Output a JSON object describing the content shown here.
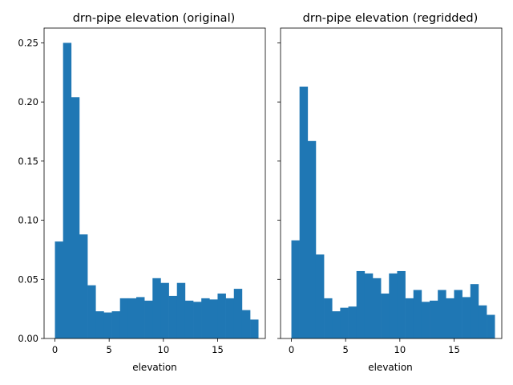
{
  "bar_color": "#1f77b4",
  "chart_data": [
    {
      "type": "bar",
      "title": "drn-pipe elevation (original)",
      "xlabel": "elevation",
      "ylabel": "",
      "xlim": [
        -1.0,
        19.4
      ],
      "ylim": [
        0.0,
        0.2625
      ],
      "xticks": [
        0,
        5,
        10,
        15
      ],
      "xtick_labels": [
        "0",
        "5",
        "10",
        "15"
      ],
      "yticks": [
        0.0,
        0.05,
        0.1,
        0.15,
        0.2,
        0.25
      ],
      "ytick_labels": [
        "0.00",
        "0.05",
        "0.10",
        "0.15",
        "0.20",
        "0.25"
      ],
      "bin_edges": [
        0.0,
        0.75,
        1.5,
        2.25,
        3.0,
        3.75,
        4.5,
        5.25,
        6.0,
        6.75,
        7.5,
        8.25,
        9.0,
        9.75,
        10.5,
        11.25,
        12.0,
        12.75,
        13.5,
        14.25,
        15.0,
        15.75,
        16.5,
        17.25,
        18.0,
        18.75
      ],
      "values": [
        0.082,
        0.25,
        0.204,
        0.088,
        0.045,
        0.023,
        0.022,
        0.023,
        0.034,
        0.034,
        0.035,
        0.032,
        0.051,
        0.047,
        0.036,
        0.047,
        0.032,
        0.031,
        0.034,
        0.033,
        0.038,
        0.034,
        0.042,
        0.024,
        0.016
      ]
    },
    {
      "type": "bar",
      "title": "drn-pipe elevation (regridded)",
      "xlabel": "elevation",
      "ylabel": "",
      "xlim": [
        -1.0,
        19.4
      ],
      "ylim": [
        0.0,
        0.2625
      ],
      "xticks": [
        0,
        5,
        10,
        15
      ],
      "xtick_labels": [
        "0",
        "5",
        "10",
        "15"
      ],
      "yticks": [
        0.0,
        0.05,
        0.1,
        0.15,
        0.2,
        0.25
      ],
      "ytick_labels": [
        "",
        "",
        "",
        "",
        "",
        ""
      ],
      "bin_edges": [
        0.0,
        0.75,
        1.5,
        2.25,
        3.0,
        3.75,
        4.5,
        5.25,
        6.0,
        6.75,
        7.5,
        8.25,
        9.0,
        9.75,
        10.5,
        11.25,
        12.0,
        12.75,
        13.5,
        14.25,
        15.0,
        15.75,
        16.5,
        17.25,
        18.0,
        18.75
      ],
      "values": [
        0.083,
        0.213,
        0.167,
        0.071,
        0.034,
        0.023,
        0.026,
        0.027,
        0.057,
        0.055,
        0.051,
        0.038,
        0.055,
        0.057,
        0.034,
        0.041,
        0.031,
        0.032,
        0.041,
        0.034,
        0.041,
        0.035,
        0.046,
        0.028,
        0.02
      ]
    }
  ]
}
